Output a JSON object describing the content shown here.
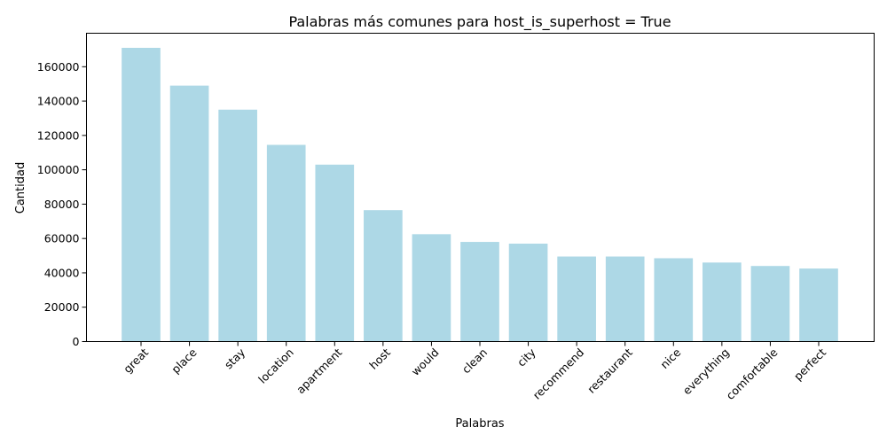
{
  "chart_data": {
    "type": "bar",
    "title": "Palabras más comunes para host_is_superhost = True",
    "xlabel": "Palabras",
    "ylabel": "Cantidad",
    "categories": [
      "great",
      "place",
      "stay",
      "location",
      "apartment",
      "host",
      "would",
      "clean",
      "city",
      "recommend",
      "restaurant",
      "nice",
      "everything",
      "comfortable",
      "perfect"
    ],
    "values": [
      171000,
      149000,
      135000,
      114500,
      103000,
      76500,
      62500,
      58000,
      57000,
      49500,
      49500,
      48500,
      46000,
      44000,
      42500
    ],
    "yticks": [
      0,
      20000,
      40000,
      60000,
      80000,
      100000,
      120000,
      140000,
      160000
    ],
    "ylim": [
      0,
      179500
    ],
    "bar_color": "#add8e6",
    "grid": false,
    "legend": "none"
  }
}
